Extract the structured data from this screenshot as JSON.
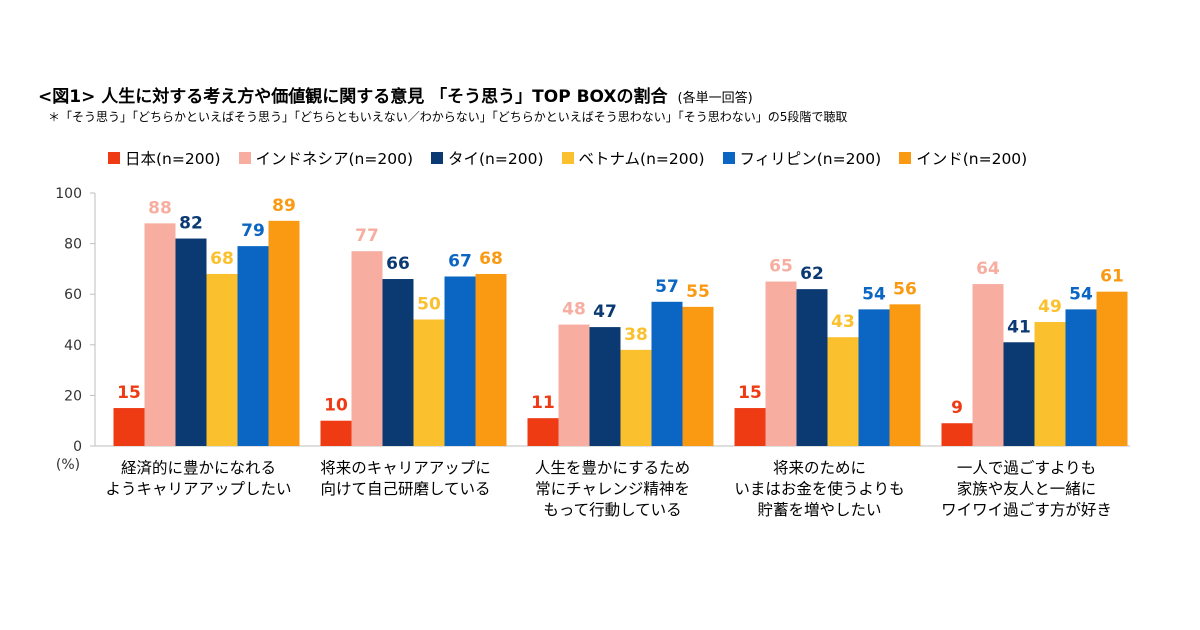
{
  "title": "<図1> 人生に対する考え方や価値観に関する意見 「そう思う」TOP BOXの割合",
  "title_paren": "(各単一回答)",
  "note": "＊「そう思う」「どちらかといえばそう思う」「どちらともいえない／わからない」「どちらかといえばそう思わない」「そう思わない」の5段階で聴取",
  "colors": {
    "japan": "#ee3b14",
    "indonesia": "#f7aea1",
    "thailand": "#0b3a73",
    "vietnam": "#fbc02d",
    "philippines": "#0a66c2",
    "india": "#f99a12"
  },
  "chart_data": {
    "type": "bar",
    "ylabel": "(%)",
    "ylim": [
      0,
      100
    ],
    "yticks": [
      0,
      20,
      40,
      60,
      80,
      100
    ],
    "grid": false,
    "legend_position": "top",
    "categories": [
      [
        "経済的に豊かになれる",
        "ようキャリアアップしたい"
      ],
      [
        "将来のキャリアアップに",
        "向けて自己研磨している"
      ],
      [
        "人生を豊かにするため",
        "常にチャレンジ精神を",
        "もって行動している"
      ],
      [
        "将来のために",
        "いまはお金を使うよりも",
        "貯蓄を増やしたい"
      ],
      [
        "一人で過ごすよりも",
        "家族や友人と一緒に",
        "ワイワイ過ごす方が好き"
      ]
    ],
    "series": [
      {
        "name": "日本(n=200)",
        "color": "#ee3b14",
        "values": [
          15,
          10,
          11,
          15,
          9
        ]
      },
      {
        "name": "インドネシア(n=200)",
        "color": "#f7aea1",
        "values": [
          88,
          77,
          48,
          65,
          64
        ]
      },
      {
        "name": "タイ(n=200)",
        "color": "#0b3a73",
        "values": [
          82,
          66,
          47,
          62,
          41
        ]
      },
      {
        "name": "ベトナム(n=200)",
        "color": "#fbc02d",
        "values": [
          68,
          50,
          38,
          43,
          49
        ]
      },
      {
        "name": "フィリピン(n=200)",
        "color": "#0a66c2",
        "values": [
          79,
          67,
          57,
          54,
          54
        ]
      },
      {
        "name": "インド(n=200)",
        "color": "#f99a12",
        "values": [
          89,
          68,
          55,
          56,
          61
        ]
      }
    ]
  }
}
